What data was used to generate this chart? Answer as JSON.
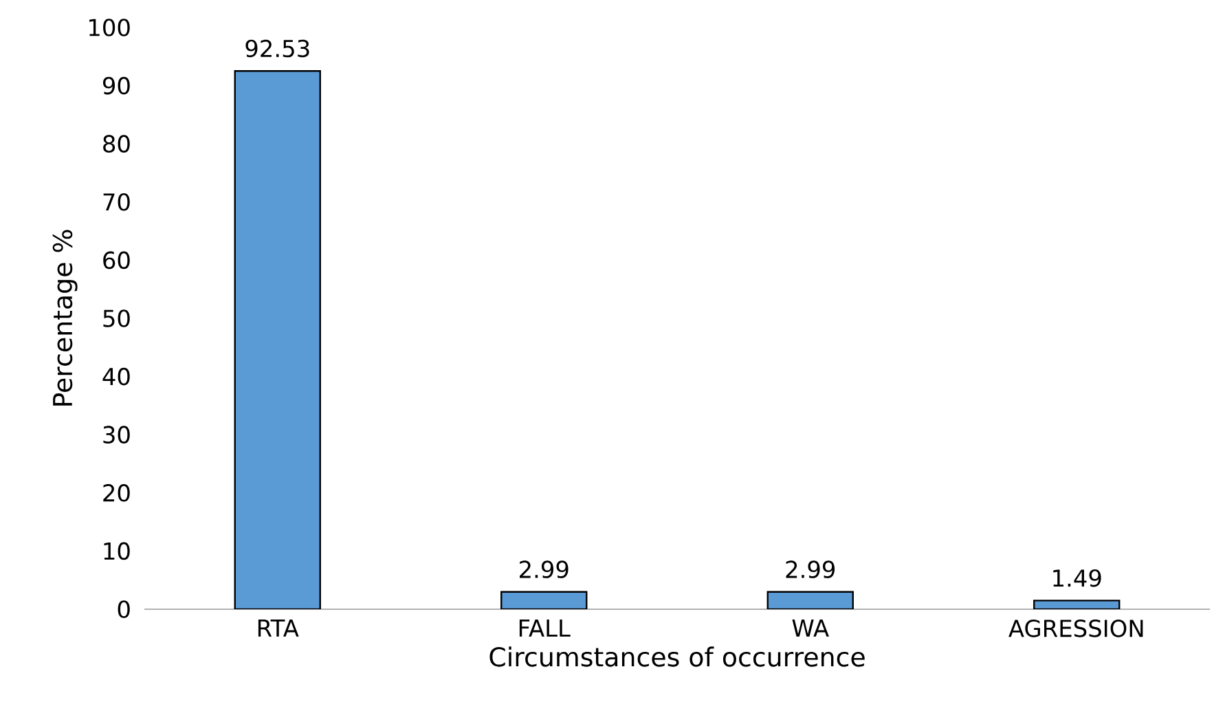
{
  "chart_data": {
    "type": "bar",
    "xlabel": "Circumstances of occurrence",
    "ylabel": "Percentage %",
    "categories": [
      "RTA",
      "FALL",
      "WA",
      "AGRESSION"
    ],
    "values": [
      92.53,
      2.99,
      2.99,
      1.49
    ],
    "color": "#5b9bd5",
    "ylim": [
      0,
      100
    ],
    "yticks": [
      0,
      10,
      20,
      30,
      40,
      50,
      60,
      70,
      80,
      90,
      100
    ],
    "data_labels": true,
    "grid": false
  }
}
